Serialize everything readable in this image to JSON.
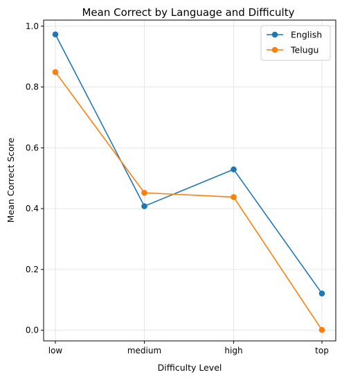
{
  "chart_data": {
    "type": "line",
    "title": "Mean Correct by Language and Difficulty",
    "xlabel": "Difficulty Level",
    "ylabel": "Mean Correct Score",
    "categories": [
      "low",
      "medium",
      "high",
      "top"
    ],
    "ylim": [
      -0.035,
      1.02
    ],
    "yticks": [
      0.0,
      0.2,
      0.4,
      0.6,
      0.8,
      1.0
    ],
    "ytick_labels": [
      "0.0",
      "0.2",
      "0.4",
      "0.6",
      "0.8",
      "1.0"
    ],
    "grid": true,
    "legend_position": "top-right",
    "series": [
      {
        "name": "English",
        "color": "#1f77b4",
        "values": [
          0.973,
          0.408,
          0.529,
          0.121
        ]
      },
      {
        "name": "Telugu",
        "color": "#ff7f0e",
        "values": [
          0.849,
          0.452,
          0.438,
          0.001
        ]
      }
    ]
  }
}
